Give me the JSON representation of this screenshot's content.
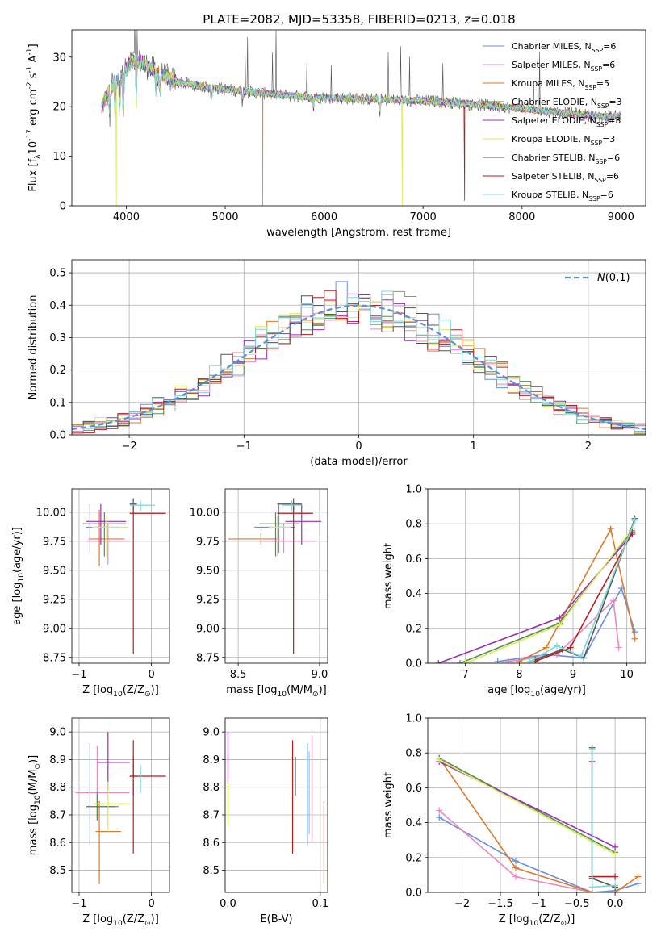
{
  "colors": {
    "chabrier_miles": "#6a8fde",
    "salpeter_miles": "#e889c1",
    "kroupa_miles": "#dd7a2a",
    "chabrier_elodie": "#5b8a5b",
    "salpeter_elodie": "#9b2fb4",
    "kroupa_elodie": "#d8ee55",
    "chabrier_stelib": "#555555",
    "salpeter_stelib": "#b51f1f",
    "kroupa_stelib": "#7ad7d7"
  },
  "chart_data": [
    {
      "type": "line",
      "title": "PLATE=2082, MJD=53358, FIBERID=0213, z=0.018",
      "xlabel": "wavelength [Angstrom, rest frame]",
      "ylabel": "Flux [f$_\\lambda$10$^{-17}$ erg cm$^{-2}$ s$^{-1}$ A$^{-1}$]",
      "xlim": [
        3450,
        9250
      ],
      "ylim": [
        0,
        35.5
      ],
      "xticks": [
        4000,
        5000,
        6000,
        7000,
        8000,
        9000
      ],
      "yticks": [
        0,
        10,
        20,
        30
      ],
      "legend_position": "top-right",
      "legend": [
        "Chabrier MILES, N$_{SSP}$=6",
        "Salpeter MILES, N$_{SSP}$=6",
        "Kroupa MILES, N$_{SSP}$=5",
        "Chabrier ELODIE, N$_{SSP}$=3",
        "Salpeter ELODIE, N$_{SSP}$=3",
        "Kroupa ELODIE, N$_{SSP}$=3",
        "Chabrier STELIB, N$_{SSP}$=6",
        "Salpeter STELIB, N$_{SSP}$=6",
        "Kroupa STELIB, N$_{SSP}$=6"
      ],
      "continuum": {
        "x": [
          3750,
          3850,
          3950,
          4050,
          4150,
          4300,
          4500,
          4800,
          5200,
          5800,
          6500,
          7200,
          7800,
          8300,
          8800,
          9000
        ],
        "y": [
          20,
          24,
          26,
          29,
          29,
          27,
          25,
          24,
          23,
          22,
          21.5,
          21,
          20,
          19,
          18,
          18
        ]
      },
      "dropouts": [
        {
          "series": "kroupa_miles",
          "x": 5380,
          "y": 0
        },
        {
          "series": "kroupa_elodie",
          "x": 6790,
          "y": 0
        },
        {
          "series": "kroupa_elodie",
          "x": 3900,
          "y": 0
        },
        {
          "series": "salpeter_stelib",
          "x": 7420,
          "y": 1
        }
      ],
      "x_range": [
        3750,
        9000
      ]
    },
    {
      "type": "step",
      "xlabel": "(data-model)/error",
      "ylabel": "Normed distribution",
      "xlim": [
        -2.5,
        2.5
      ],
      "ylim": [
        0,
        0.54
      ],
      "xticks": [
        -2,
        -1,
        0,
        1,
        2
      ],
      "yticks": [
        0.0,
        0.1,
        0.2,
        0.3,
        0.4,
        0.5
      ],
      "grid": true,
      "legend": [
        "$\\mathcal{N}(0,1)$"
      ],
      "legend_position": "top-right",
      "bin_width": 0.1
    },
    {
      "type": "errorbar",
      "xlabel": "Z [log$_{10}$(Z/Z$_\\odot$)]",
      "ylabel": "age  [log$_{10}$(age/yr)]",
      "xlim": [
        -1.1,
        0.25
      ],
      "ylim": [
        8.7,
        10.2
      ],
      "xticks": [
        -1,
        0
      ],
      "yticks": [
        8.75,
        9.0,
        9.25,
        9.5,
        9.75,
        10.0
      ],
      "grid": true,
      "points": [
        {
          "series": "chabrier_miles",
          "x": -0.85,
          "y": 9.87,
          "xerr": [
            0.05,
            0.4
          ],
          "yerr": [
            0.22,
            0.2
          ]
        },
        {
          "series": "salpeter_miles",
          "x": -0.6,
          "y": 9.75,
          "xerr": [
            0.3,
            0.3
          ],
          "yerr": [
            0.2,
            0.15
          ]
        },
        {
          "series": "kroupa_miles",
          "x": -0.72,
          "y": 9.77,
          "xerr": [
            0.15,
            0.35
          ],
          "yerr": [
            0.23,
            0.25
          ]
        },
        {
          "series": "chabrier_elodie",
          "x": -0.65,
          "y": 9.9,
          "xerr": [
            0.3,
            0.3
          ],
          "yerr": [
            0.28,
            0.1
          ]
        },
        {
          "series": "salpeter_elodie",
          "x": -0.7,
          "y": 9.92,
          "xerr": [
            0.2,
            0.35
          ],
          "yerr": [
            0.2,
            0.15
          ]
        },
        {
          "series": "kroupa_elodie",
          "x": -0.62,
          "y": 9.87,
          "xerr": [
            0.2,
            0.3
          ],
          "yerr": [
            0.25,
            0.1
          ]
        },
        {
          "series": "chabrier_stelib",
          "x": -0.25,
          "y": 10.07,
          "xerr": [
            0.05,
            0.05
          ],
          "yerr": [
            0.05,
            0.05
          ]
        },
        {
          "series": "salpeter_stelib",
          "x": -0.25,
          "y": 9.99,
          "xerr": [
            0.05,
            0.45
          ],
          "yerr": [
            1.21,
            0.07
          ]
        },
        {
          "series": "kroupa_stelib",
          "x": -0.15,
          "y": 10.06,
          "xerr": [
            0.15,
            0.2
          ],
          "yerr": [
            0.05,
            0.04
          ]
        }
      ]
    },
    {
      "type": "errorbar",
      "xlabel": "mass [log$_{10}$(M/M$_\\odot$)]",
      "xlim": [
        8.42,
        9.05
      ],
      "ylim": [
        8.7,
        10.2
      ],
      "xticks": [
        8.5,
        9.0
      ],
      "yticks": [
        8.75,
        9.0,
        9.25,
        9.5,
        9.75,
        10.0
      ],
      "grid": true,
      "points": [
        {
          "series": "chabrier_miles",
          "x": 8.75,
          "y": 9.87,
          "xerr": [
            0.15,
            0.1
          ],
          "yerr": [
            0.22,
            0.2
          ]
        },
        {
          "series": "salpeter_miles",
          "x": 8.78,
          "y": 9.75,
          "xerr": [
            0.15,
            0.2
          ],
          "yerr": [
            0.1,
            0.15
          ]
        },
        {
          "series": "kroupa_miles",
          "x": 8.64,
          "y": 9.77,
          "xerr": [
            0.2,
            0.1
          ],
          "yerr": [
            0.05,
            0.05
          ]
        },
        {
          "series": "chabrier_elodie",
          "x": 8.73,
          "y": 9.9,
          "xerr": [
            0.1,
            0.15
          ],
          "yerr": [
            0.28,
            0.1
          ]
        },
        {
          "series": "salpeter_elodie",
          "x": 8.89,
          "y": 9.92,
          "xerr": [
            0.1,
            0.12
          ],
          "yerr": [
            0.2,
            0.15
          ]
        },
        {
          "series": "kroupa_elodie",
          "x": 8.74,
          "y": 9.87,
          "xerr": [
            0.05,
            0.08
          ],
          "yerr": [
            0.25,
            0.1
          ]
        },
        {
          "series": "chabrier_stelib",
          "x": 8.84,
          "y": 10.07,
          "xerr": [
            0.1,
            0.05
          ],
          "yerr": [
            0.05,
            0.05
          ]
        },
        {
          "series": "salpeter_stelib",
          "x": 8.84,
          "y": 9.99,
          "xerr": [
            0.1,
            0.12
          ],
          "yerr": [
            1.21,
            0.07
          ]
        },
        {
          "series": "kroupa_stelib",
          "x": 8.83,
          "y": 10.06,
          "xerr": [
            0.06,
            0.06
          ],
          "yerr": [
            0.05,
            0.04
          ]
        }
      ]
    },
    {
      "type": "line",
      "xlabel": "age  [log$_{10}$(age/yr)]",
      "ylabel": "mass weight",
      "xlim": [
        6.3,
        10.35
      ],
      "ylim": [
        0,
        1.0
      ],
      "xticks": [
        7,
        8,
        9,
        10
      ],
      "yticks": [
        0.0,
        0.2,
        0.4,
        0.6,
        0.8,
        1.0
      ],
      "grid": true,
      "series": [
        {
          "name": "chabrier_miles",
          "x": [
            7.6,
            8.5,
            9.2,
            9.9,
            10.15
          ],
          "y": [
            0.01,
            0.05,
            0.03,
            0.43,
            0.18
          ]
        },
        {
          "name": "salpeter_miles",
          "x": [
            7.8,
            8.7,
            9.75,
            9.85
          ],
          "y": [
            0.01,
            0.05,
            0.36,
            0.09
          ]
        },
        {
          "name": "kroupa_miles",
          "x": [
            8.0,
            8.5,
            9.7,
            10.15
          ],
          "y": [
            0.01,
            0.09,
            0.77,
            0.14
          ]
        },
        {
          "name": "chabrier_elodie",
          "x": [
            6.9,
            8.75,
            10.1
          ],
          "y": [
            0.0,
            0.23,
            0.76
          ]
        },
        {
          "name": "salpeter_elodie",
          "x": [
            6.5,
            8.75,
            10.1
          ],
          "y": [
            0.0,
            0.26,
            0.74
          ]
        },
        {
          "name": "kroupa_elodie",
          "x": [
            7.0,
            8.75,
            10.1
          ],
          "y": [
            0.0,
            0.22,
            0.77
          ]
        },
        {
          "name": "chabrier_stelib",
          "x": [
            8.3,
            8.8,
            9.2,
            10.15
          ],
          "y": [
            0.02,
            0.08,
            0.03,
            0.83
          ]
        },
        {
          "name": "salpeter_stelib",
          "x": [
            8.3,
            8.95,
            10.1
          ],
          "y": [
            0.01,
            0.09,
            0.75
          ]
        },
        {
          "name": "kroupa_stelib",
          "x": [
            8.2,
            8.7,
            9.15,
            10.15
          ],
          "y": [
            0.01,
            0.1,
            0.04,
            0.82
          ]
        }
      ]
    },
    {
      "type": "errorbar",
      "xlabel": "Z [log$_{10}$(Z/Z$_\\odot$)]",
      "ylabel": "mass [log$_{10}$(M/M$_\\odot$)]",
      "xlim": [
        -1.1,
        0.25
      ],
      "ylim": [
        8.42,
        9.05
      ],
      "xticks": [
        -1,
        0
      ],
      "yticks": [
        8.5,
        8.6,
        8.7,
        8.8,
        8.9,
        9.0
      ],
      "grid": true,
      "points": [
        {
          "series": "chabrier_miles",
          "x": -0.85,
          "y": 8.73,
          "xerr": [
            0.05,
            0.4
          ],
          "yerr": [
            0.14,
            0.23
          ]
        },
        {
          "series": "salpeter_miles",
          "x": -0.75,
          "y": 8.78,
          "xerr": [
            0.3,
            0.45
          ],
          "yerr": [
            0.1,
            0.17
          ]
        },
        {
          "series": "kroupa_miles",
          "x": -0.72,
          "y": 8.64,
          "xerr": [
            0.05,
            0.3
          ],
          "yerr": [
            0.19,
            0.11
          ]
        },
        {
          "series": "chabrier_elodie",
          "x": -0.75,
          "y": 8.73,
          "xerr": [
            0.15,
            0.25
          ],
          "yerr": [
            0.05,
            0.05
          ]
        },
        {
          "series": "salpeter_elodie",
          "x": -0.6,
          "y": 8.89,
          "xerr": [
            0.15,
            0.3
          ],
          "yerr": [
            0.1,
            0.11
          ]
        },
        {
          "series": "kroupa_elodie",
          "x": -0.6,
          "y": 8.74,
          "xerr": [
            0.2,
            0.3
          ],
          "yerr": [
            0.1,
            0.08
          ]
        },
        {
          "series": "chabrier_stelib",
          "x": -0.25,
          "y": 8.84,
          "xerr": [
            0.05,
            0.05
          ],
          "yerr": [
            0.07,
            0.07
          ]
        },
        {
          "series": "salpeter_stelib",
          "x": -0.25,
          "y": 8.84,
          "xerr": [
            0.05,
            0.45
          ],
          "yerr": [
            0.28,
            0.13
          ]
        },
        {
          "series": "kroupa_stelib",
          "x": -0.15,
          "y": 8.83,
          "xerr": [
            0.2,
            0.1
          ],
          "yerr": [
            0.05,
            0.05
          ]
        }
      ]
    },
    {
      "type": "errorbar",
      "xlabel": "E(B-V)",
      "xlim": [
        -0.003,
        0.108
      ],
      "ylim": [
        8.42,
        9.05
      ],
      "xticks": [
        0.0,
        0.1
      ],
      "yticks": [
        8.5,
        8.6,
        8.7,
        8.8,
        8.9,
        9.0
      ],
      "grid": true,
      "points": [
        {
          "series": "salpeter_elodie",
          "x": 0.0,
          "y": 8.89,
          "xerr": [
            0,
            0
          ],
          "yerr": [
            0.08,
            0.11
          ]
        },
        {
          "series": "kroupa_elodie",
          "x": 0.0,
          "y": 8.74,
          "xerr": [
            0,
            0
          ],
          "yerr": [
            0.08,
            0.08
          ]
        },
        {
          "series": "salpeter_stelib",
          "x": 0.07,
          "y": 8.84,
          "xerr": [
            0,
            0
          ],
          "yerr": [
            0.28,
            0.13
          ]
        },
        {
          "series": "chabrier_stelib",
          "x": 0.073,
          "y": 8.84,
          "xerr": [
            0,
            0
          ],
          "yerr": [
            0.07,
            0.07
          ]
        },
        {
          "series": "kroupa_stelib",
          "x": 0.088,
          "y": 8.83,
          "xerr": [
            0,
            0
          ],
          "yerr": [
            0.2,
            0.1
          ]
        },
        {
          "series": "chabrier_miles",
          "x": 0.086,
          "y": 8.73,
          "xerr": [
            0,
            0
          ],
          "yerr": [
            0.14,
            0.23
          ]
        },
        {
          "series": "salpeter_miles",
          "x": 0.091,
          "y": 8.78,
          "xerr": [
            0,
            0
          ],
          "yerr": [
            0.18,
            0.21
          ]
        },
        {
          "series": "kroupa_miles",
          "x": 0.104,
          "y": 8.64,
          "xerr": [
            0,
            0
          ],
          "yerr": [
            0.19,
            0.11
          ]
        }
      ]
    },
    {
      "type": "line",
      "xlabel": "Z [log$_{10}$(Z/Z$_\\odot$)]",
      "ylabel": "mass weight",
      "xlim": [
        -2.45,
        0.4
      ],
      "ylim": [
        0,
        1.0
      ],
      "xticks": [
        -2.0,
        -1.5,
        -1.0,
        -0.5,
        0.0
      ],
      "yticks": [
        0.0,
        0.2,
        0.4,
        0.6,
        0.8,
        1.0
      ],
      "grid": true,
      "series": [
        {
          "name": "chabrier_miles",
          "x": [
            -2.3,
            -1.3,
            -0.3,
            0.0,
            0.3
          ],
          "y": [
            0.43,
            0.18,
            0.0,
            0.01,
            0.05
          ]
        },
        {
          "name": "salpeter_miles",
          "x": [
            -2.3,
            -1.3,
            -0.3,
            0.0
          ],
          "y": [
            0.47,
            0.09,
            0.0,
            0.0
          ]
        },
        {
          "name": "kroupa_miles",
          "x": [
            -2.3,
            -1.3,
            -0.3,
            0.0,
            0.3
          ],
          "y": [
            0.77,
            0.14,
            0.0,
            0.0,
            0.09
          ]
        },
        {
          "name": "chabrier_elodie",
          "x": [
            -2.3,
            0.0
          ],
          "y": [
            0.77,
            0.23
          ]
        },
        {
          "name": "salpeter_elodie",
          "x": [
            -2.3,
            0.0
          ],
          "y": [
            0.75,
            0.26
          ]
        },
        {
          "name": "kroupa_elodie",
          "x": [
            -2.3,
            0.0
          ],
          "y": [
            0.76,
            0.22
          ]
        },
        {
          "name": "chabrier_stelib",
          "x": [
            -0.3,
            -0.3,
            0.0
          ],
          "y": [
            0.83,
            0.08,
            0.03
          ]
        },
        {
          "name": "salpeter_stelib",
          "x": [
            -0.3,
            -0.3,
            0.0
          ],
          "y": [
            0.75,
            0.09,
            0.09
          ]
        },
        {
          "name": "kroupa_stelib",
          "x": [
            -0.3,
            -0.3,
            0.0
          ],
          "y": [
            0.82,
            0.03,
            0.04
          ]
        }
      ]
    }
  ]
}
